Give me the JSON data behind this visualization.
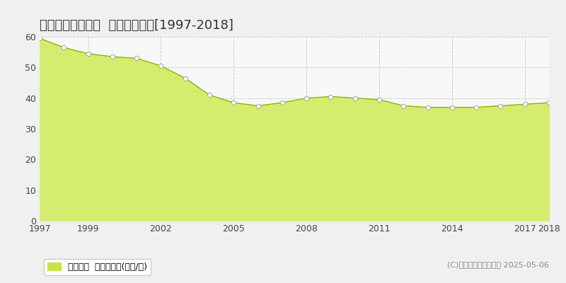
{
  "title": "生駒郡斑鳩町興留  基準地価推移[1997-2018]",
  "years": [
    1997,
    1998,
    1999,
    2000,
    2001,
    2002,
    2003,
    2004,
    2005,
    2006,
    2007,
    2008,
    2009,
    2010,
    2011,
    2012,
    2013,
    2014,
    2015,
    2016,
    2017,
    2018
  ],
  "values": [
    59.5,
    56.5,
    54.5,
    53.5,
    53.0,
    50.5,
    46.5,
    41.0,
    38.5,
    37.5,
    38.5,
    40.0,
    40.5,
    40.0,
    39.5,
    37.5,
    37.0,
    37.0,
    37.0,
    37.5,
    38.0,
    38.5
  ],
  "fill_color": "#d4ed6e",
  "line_color": "#8ab800",
  "marker_face": "#ffffff",
  "marker_edge": "#aaaaaa",
  "bg_color": "#f0f0f0",
  "plot_bg_color": "#f8f8f8",
  "grid_color": "#cccccc",
  "ylim": [
    0,
    60
  ],
  "yticks": [
    0,
    10,
    20,
    30,
    40,
    50,
    60
  ],
  "xlabel_ticks": [
    1997,
    1999,
    2002,
    2005,
    2008,
    2011,
    2014,
    2017,
    2018
  ],
  "legend_label": "基準地価  平均坪単価(万円/坪)",
  "legend_color": "#c8e640",
  "copyright": "(C)土地価格ドットコム 2025-05-06",
  "title_fontsize": 13,
  "tick_fontsize": 9,
  "legend_fontsize": 9,
  "copyright_fontsize": 8
}
